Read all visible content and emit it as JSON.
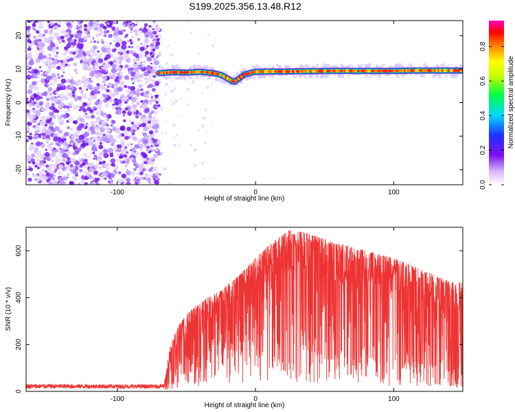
{
  "title": "S199.2025.356.13.48.R12",
  "chart_data": [
    {
      "type": "heatmap",
      "xlabel": "Height of straight line (km)",
      "ylabel": "Frequency (Hz)",
      "xlim": [
        -166,
        150
      ],
      "ylim": [
        -24.5,
        24.5
      ],
      "xticks": [
        -100,
        0,
        100
      ],
      "yticks": [
        -20,
        -10,
        0,
        10,
        20
      ],
      "colorbar": {
        "label": "Normalized spectral amplitude",
        "range": [
          0,
          0.95
        ],
        "ticks": [
          0.0,
          0.2,
          0.4,
          0.6,
          0.8
        ]
      },
      "noise_region_x": [
        -166,
        -70
      ],
      "ridge": {
        "x": [
          -70,
          -60,
          -50,
          -40,
          -30,
          -25,
          -20,
          -17,
          -15,
          -12,
          -8,
          -3,
          0,
          10,
          20,
          40,
          60,
          80,
          100,
          120,
          150
        ],
        "frequency": [
          8.8,
          9.1,
          9.0,
          9.2,
          8.8,
          8.3,
          7.2,
          6.4,
          6.3,
          7.2,
          8.4,
          9.0,
          9.2,
          9.3,
          9.3,
          9.4,
          9.5,
          9.5,
          9.5,
          9.6,
          9.6
        ]
      }
    },
    {
      "type": "line",
      "xlabel": "Height of straight line (km)",
      "ylabel": "SNR (10 * v/v)",
      "xlim": [
        -166,
        150
      ],
      "ylim": [
        0,
        700
      ],
      "xticks": [
        -100,
        0,
        100
      ],
      "yticks": [
        0,
        200,
        400,
        600
      ],
      "color": "#ee3333",
      "envelope": {
        "x": [
          -166,
          -70,
          -66,
          -62,
          -55,
          -45,
          -35,
          -25,
          -15,
          -5,
          5,
          15,
          25,
          35,
          45,
          60,
          80,
          100,
          120,
          140,
          150
        ],
        "upper": [
          32,
          30,
          35,
          190,
          290,
          360,
          400,
          430,
          480,
          540,
          600,
          650,
          690,
          680,
          660,
          630,
          600,
          570,
          520,
          470,
          465
        ],
        "lower": [
          12,
          12,
          14,
          30,
          60,
          90,
          120,
          150,
          170,
          190,
          200,
          210,
          200,
          190,
          180,
          160,
          140,
          120,
          110,
          90,
          80
        ]
      }
    }
  ]
}
